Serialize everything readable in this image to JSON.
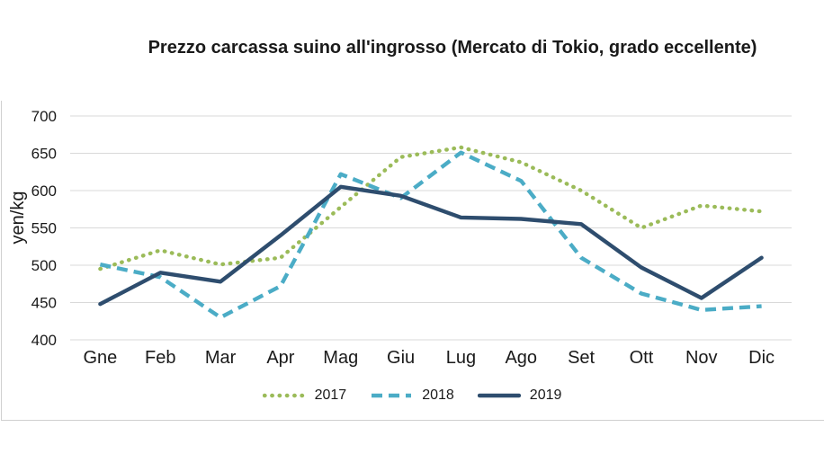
{
  "title": "Prezzo carcassa suino all'ingrosso (Mercato di Tokio, grado eccellente)",
  "chart_data": {
    "type": "line",
    "categories": [
      "Gne",
      "Feb",
      "Mar",
      "Apr",
      "Mag",
      "Giu",
      "Lug",
      "Ago",
      "Set",
      "Ott",
      "Nov",
      "Dic"
    ],
    "ylabel": "yen/kg",
    "ylim": [
      400,
      700
    ],
    "y_ticks": [
      400,
      450,
      500,
      550,
      600,
      650,
      700
    ],
    "grid": "horizontal",
    "gridline_color": "#d9d9d9",
    "legend_position": "bottom",
    "series": [
      {
        "name": "2017",
        "style": "dotted",
        "color": "#9BBB59",
        "values": [
          495,
          520,
          501,
          510,
          578,
          645,
          658,
          638,
          600,
          550,
          580,
          572
        ]
      },
      {
        "name": "2018",
        "style": "dashed",
        "color": "#4BACC6",
        "values": [
          501,
          484,
          430,
          472,
          622,
          590,
          651,
          613,
          510,
          462,
          440,
          445
        ]
      },
      {
        "name": "2019",
        "style": "solid",
        "color": "#2E4D6E",
        "values": [
          448,
          490,
          478,
          540,
          605,
          593,
          564,
          562,
          555,
          497,
          456,
          510
        ]
      }
    ]
  }
}
